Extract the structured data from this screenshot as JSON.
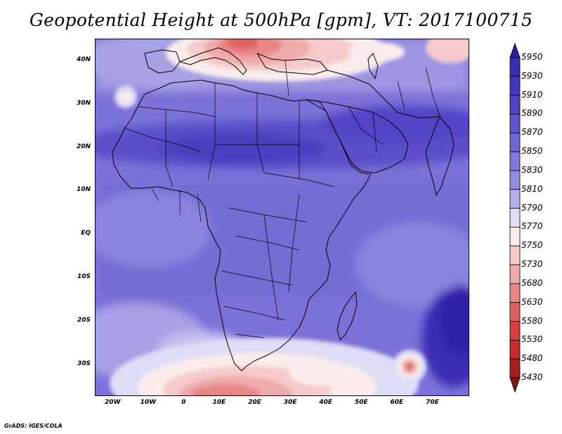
{
  "title": "Geopotential Height at 500hPa [gpm], VT: 2017100715",
  "credit": "GrADS: IGES/COLA",
  "map": {
    "variable": "geopotential height 500hPa",
    "lon_range": [
      -25,
      80
    ],
    "lat_range": [
      -37,
      45
    ],
    "lat_ticks": [
      {
        "lat": 40,
        "label": "40N"
      },
      {
        "lat": 30,
        "label": "30N"
      },
      {
        "lat": 20,
        "label": "20N"
      },
      {
        "lat": 10,
        "label": "10N"
      },
      {
        "lat": 0,
        "label": "EQ"
      },
      {
        "lat": -10,
        "label": "10S"
      },
      {
        "lat": -20,
        "label": "20S"
      },
      {
        "lat": -30,
        "label": "30S"
      }
    ],
    "lon_ticks": [
      {
        "lon": -20,
        "label": "20W"
      },
      {
        "lon": -10,
        "label": "10W"
      },
      {
        "lon": 0,
        "label": "0"
      },
      {
        "lon": 10,
        "label": "10E"
      },
      {
        "lon": 20,
        "label": "20E"
      },
      {
        "lon": 30,
        "label": "30E"
      },
      {
        "lon": 40,
        "label": "40E"
      },
      {
        "lon": 50,
        "label": "50E"
      },
      {
        "lon": 60,
        "label": "60E"
      },
      {
        "lon": 70,
        "label": "70E"
      }
    ]
  },
  "colorbar": {
    "levels": [
      "5950",
      "5930",
      "5910",
      "5890",
      "5870",
      "5850",
      "5830",
      "5810",
      "5790",
      "5770",
      "5750",
      "5730",
      "5680",
      "5630",
      "5580",
      "5530",
      "5480",
      "5430"
    ],
    "colors": [
      "#2a1c9e",
      "#3a2db3",
      "#4536be",
      "#5144c6",
      "#5f55cc",
      "#6e66d3",
      "#8079da",
      "#938de0",
      "#b3b0ea",
      "#ddddf6",
      "#fbecec",
      "#f6caca",
      "#efaaaa",
      "#e78686",
      "#df6262",
      "#d53f3f",
      "#c52b2b",
      "#a61f1f",
      "#8a1414"
    ]
  }
}
